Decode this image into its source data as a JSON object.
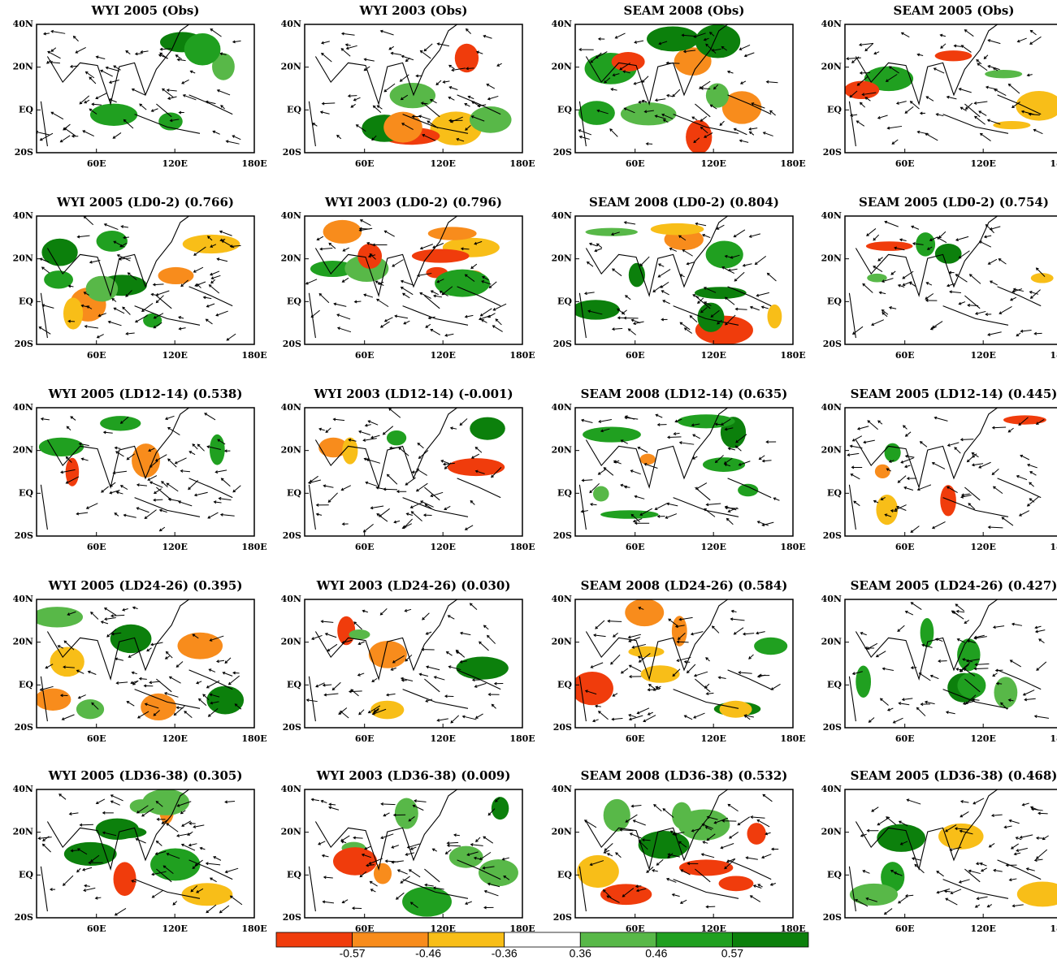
{
  "panels": [
    {
      "title": "WYI 2005 (Obs)"
    },
    {
      "title": "WYI 2003 (Obs)"
    },
    {
      "title": "SEAM 2008 (Obs)"
    },
    {
      "title": "SEAM 2005 (Obs)"
    },
    {
      "title": "WYI 2005 (LD0-2) (0.766)"
    },
    {
      "title": "WYI 2003 (LD0-2) (0.796)"
    },
    {
      "title": "SEAM 2008 (LD0-2) (0.804)"
    },
    {
      "title": "SEAM 2005 (LD0-2) (0.754)"
    },
    {
      "title": "WYI 2005 (LD12-14) (0.538)"
    },
    {
      "title": "WYI 2003 (LD12-14) (-0.001)"
    },
    {
      "title": "SEAM 2008 (LD12-14) (0.635)"
    },
    {
      "title": "SEAM 2005 (LD12-14) (0.445)"
    },
    {
      "title": "WYI 2005 (LD24-26) (0.395)"
    },
    {
      "title": "WYI 2003 (LD24-26) (0.030)"
    },
    {
      "title": "SEAM 2008 (LD24-26) (0.584)"
    },
    {
      "title": "SEAM 2005 (LD24-26) (0.427)"
    },
    {
      "title": "WYI 2005 (LD36-38) (0.305)"
    },
    {
      "title": "WYI 2003 (LD36-38) (0.009)"
    },
    {
      "title": "SEAM 2008 (LD36-38) (0.532)"
    },
    {
      "title": "SEAM 2005 (LD36-38) (0.468)"
    }
  ],
  "y_labels": [
    "40N",
    "20N",
    "EQ",
    "20S"
  ],
  "x_labels": [
    "60E",
    "120E",
    "180E"
  ],
  "colorbar": {
    "colors": [
      "#f03c0c",
      "#f88c1c",
      "#f8be18",
      "#ffffff",
      "#58b848",
      "#20a020",
      "#0c800c"
    ],
    "ticks": [
      -0.57,
      -0.46,
      -0.36,
      0.36,
      0.46,
      0.57
    ]
  }
}
